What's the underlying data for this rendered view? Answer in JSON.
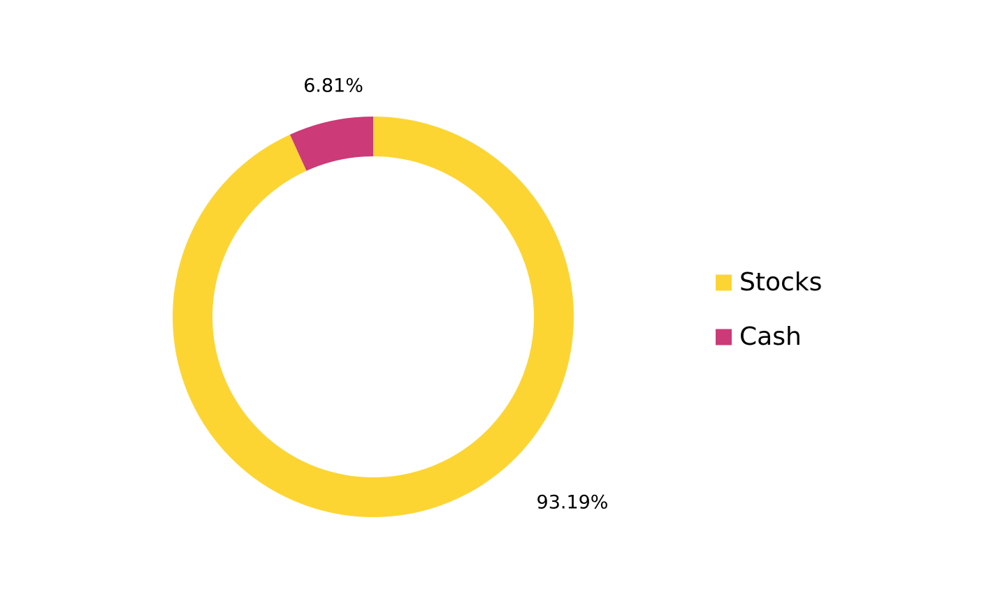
{
  "chart_data": {
    "type": "donut",
    "categories": [
      "Stocks",
      "Cash"
    ],
    "values": [
      93.19,
      6.81
    ],
    "value_labels": [
      "93.19%",
      "6.81%"
    ],
    "colors": [
      "#fdd533",
      "#cc3a77"
    ],
    "legend": "right"
  }
}
